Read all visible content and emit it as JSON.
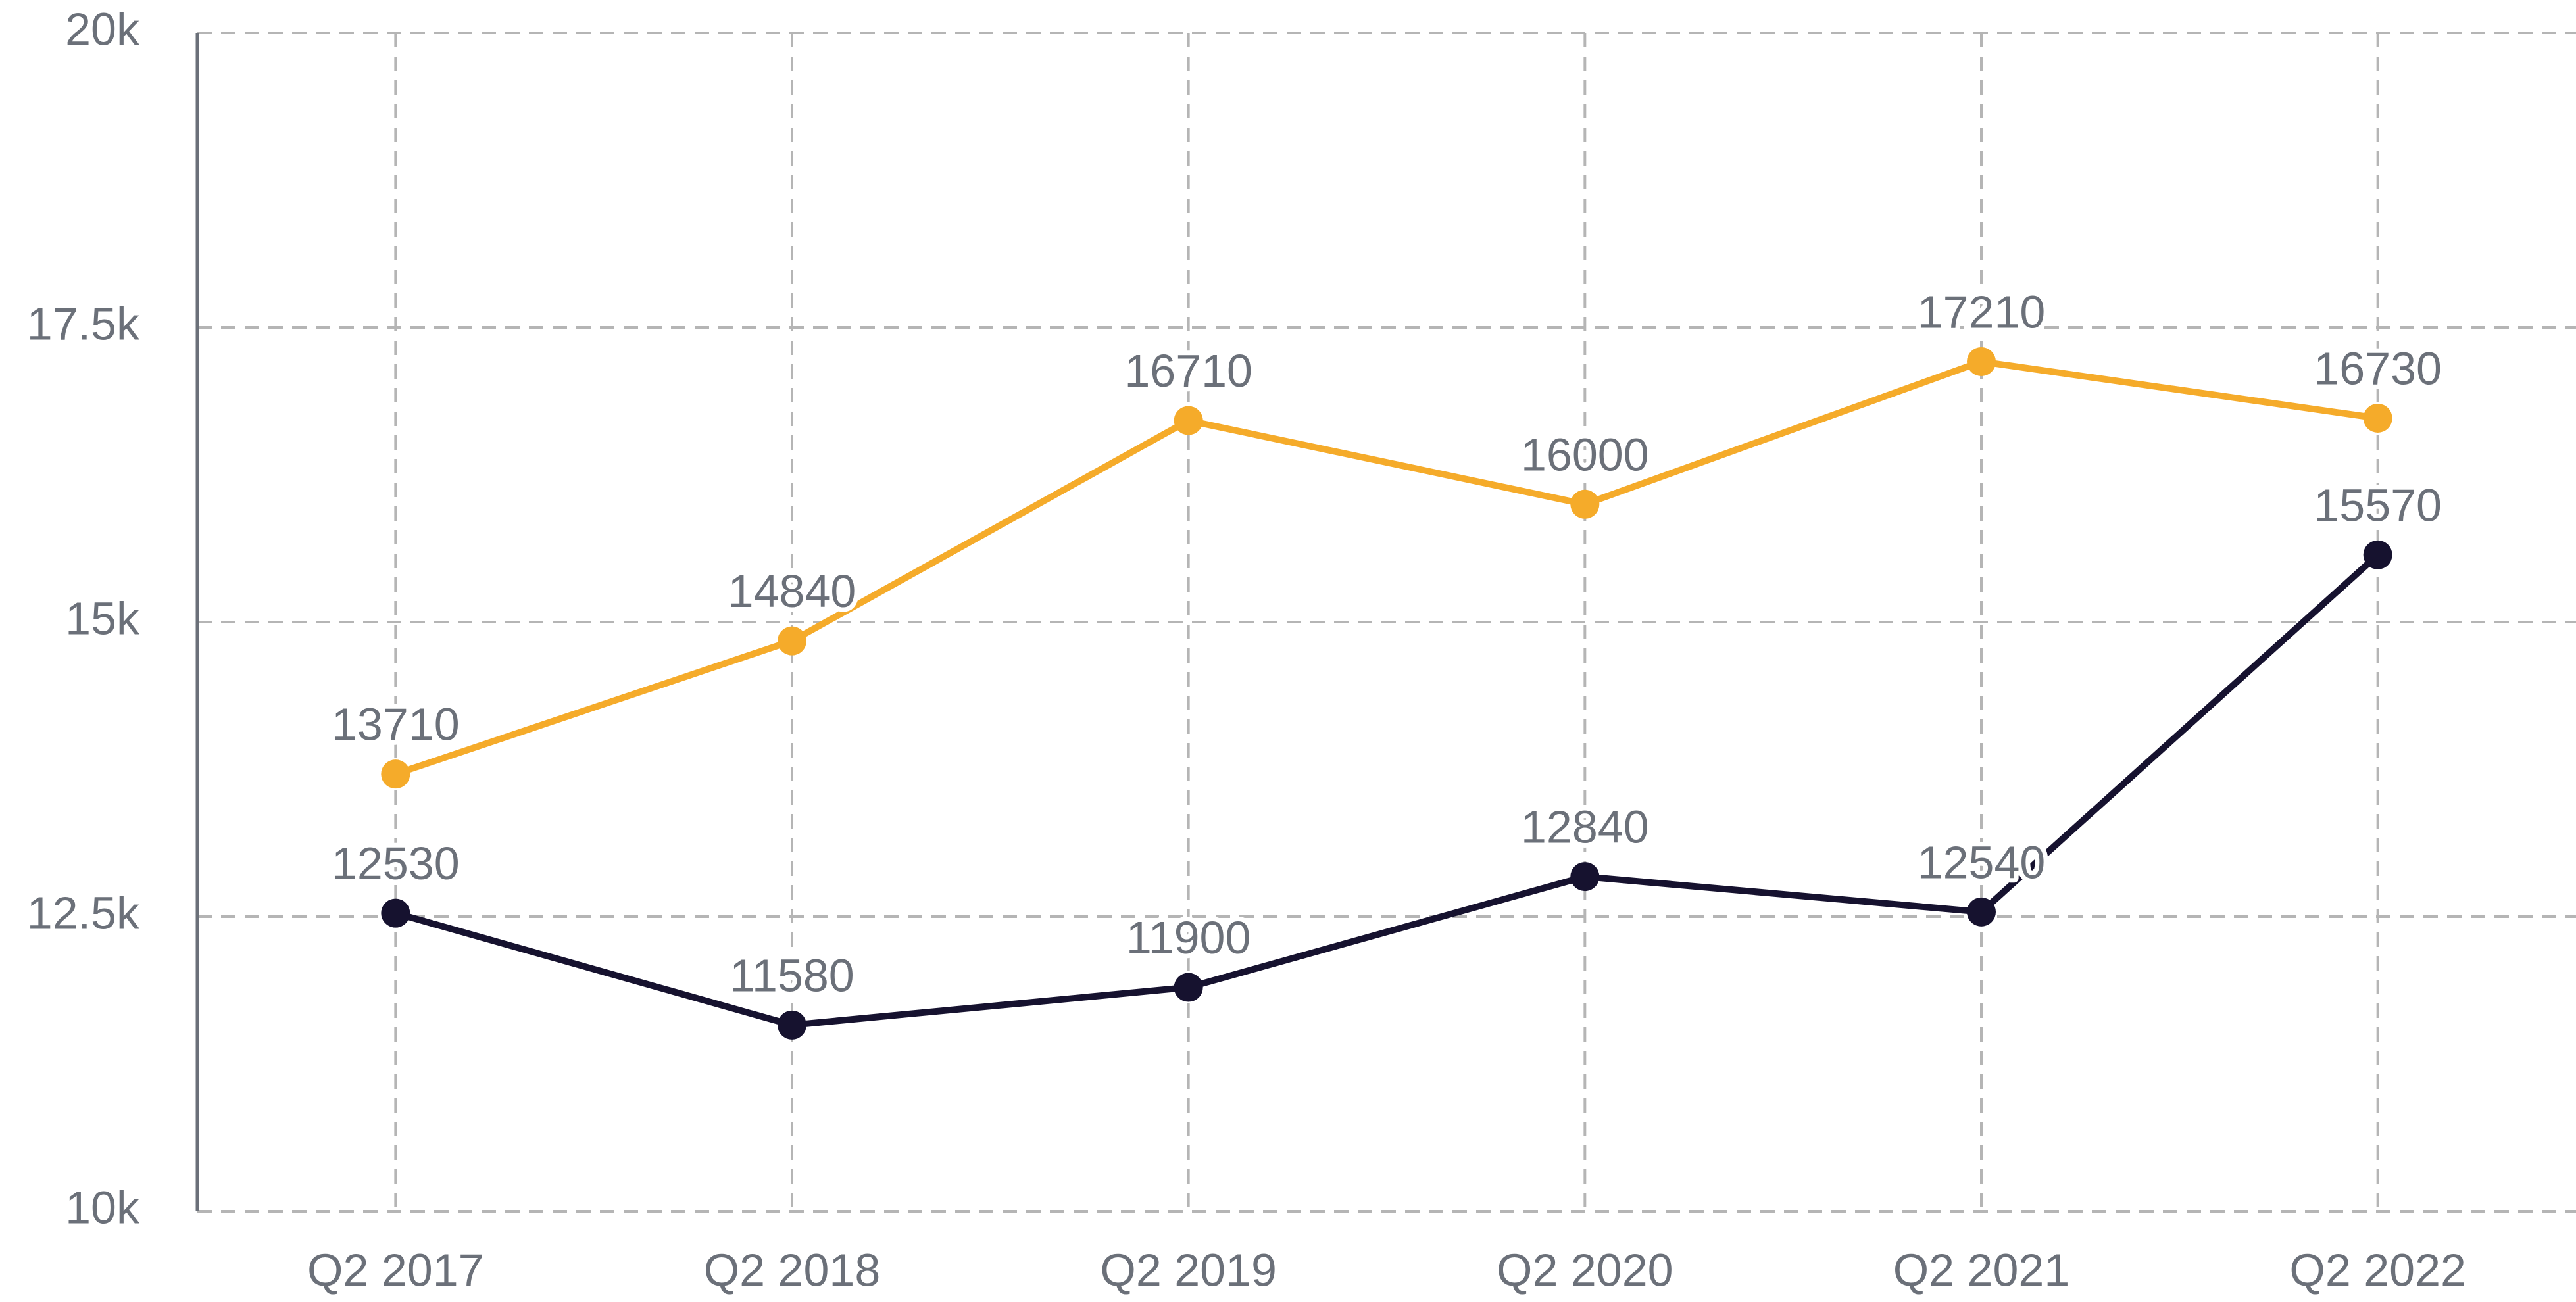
{
  "chart_data": {
    "type": "line",
    "categories": [
      "Q2 2017",
      "Q2 2018",
      "Q2 2019",
      "Q2 2020",
      "Q2 2021",
      "Q2 2022"
    ],
    "series": [
      {
        "color": "#f5ab2a",
        "values": [
          13710,
          14840,
          16710,
          16000,
          17210,
          16730
        ]
      },
      {
        "color": "#16122f",
        "values": [
          12530,
          11580,
          11900,
          12840,
          12540,
          15570
        ]
      }
    ],
    "ylim": [
      10000,
      20000
    ],
    "yticks": [
      {
        "value": 10000,
        "label": "10k"
      },
      {
        "value": 12500,
        "label": "12.5k"
      },
      {
        "value": 15000,
        "label": "15k"
      },
      {
        "value": 17500,
        "label": "17.5k"
      },
      {
        "value": 20000,
        "label": "20k"
      }
    ],
    "grid": true,
    "data_labels": true
  }
}
